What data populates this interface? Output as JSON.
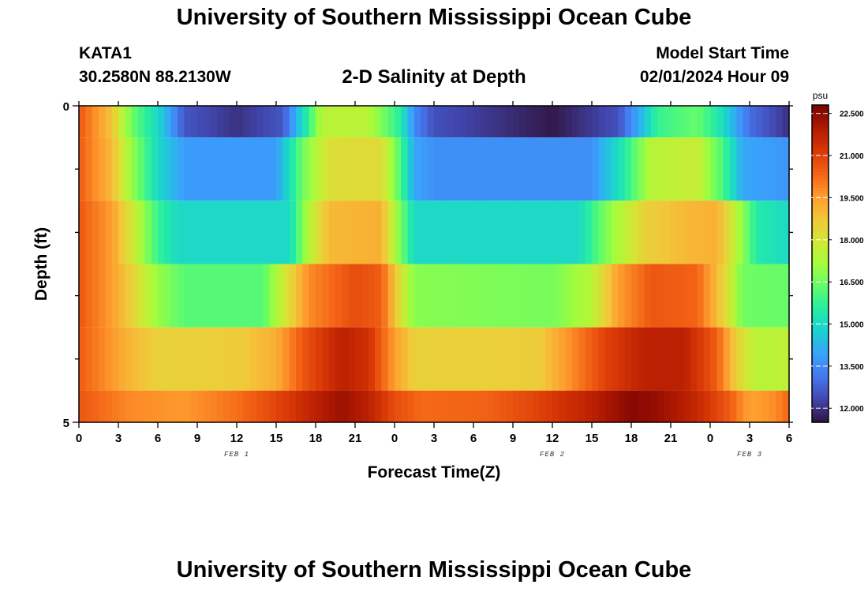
{
  "header": {
    "title": "University of Southern Mississippi Ocean Cube",
    "station_id": "KATA1",
    "coordinates": "30.2580N  88.2130W",
    "subtitle": "2-D Salinity at Depth",
    "model_start_label": "Model Start Time",
    "model_start_value": "02/01/2024 Hour 09",
    "bottom_title": "University of Southern Mississippi Ocean Cube"
  },
  "chart_data": {
    "type": "heatmap",
    "title": "2-D Salinity at Depth",
    "xlabel": "Forecast Time(Z)",
    "ylabel": "Depth (ft)",
    "x_tick_labels": [
      "0",
      "3",
      "6",
      "9",
      "12",
      "15",
      "18",
      "21",
      "0",
      "3",
      "6",
      "9",
      "12",
      "15",
      "18",
      "21",
      "0",
      "3",
      "6"
    ],
    "x_range_hours": [
      0,
      54
    ],
    "date_labels": [
      {
        "label": "FEB 1",
        "hour": 12
      },
      {
        "label": "FEB 2",
        "hour": 36
      },
      {
        "label": "FEB 3",
        "hour": 51
      }
    ],
    "y_tick_labels": [
      "0",
      "5"
    ],
    "ylim": [
      0,
      5
    ],
    "depth_bins_ft": [
      0,
      1,
      2,
      3,
      4,
      5
    ],
    "colorbar": {
      "units": "psu",
      "min": 11.5,
      "max": 22.8,
      "tick_labels": [
        "22.500",
        "21.000",
        "19.500",
        "18.000",
        "16.500",
        "15.000",
        "13.500",
        "12.000"
      ],
      "tick_values": [
        22.5,
        21.0,
        19.5,
        18.0,
        16.5,
        15.0,
        13.5,
        12.0
      ],
      "colormap": [
        "#30123b",
        "#4145ab",
        "#4675ed",
        "#39a2fc",
        "#1bcfd4",
        "#24eca6",
        "#61fc6c",
        "#a4fc3b",
        "#d1e834",
        "#f3c63a",
        "#fe9b2d",
        "#f36315",
        "#d93806",
        "#b11901",
        "#7a0403"
      ]
    },
    "rows": [
      {
        "depth_ft": 0,
        "keyframes": [
          [
            0,
            20.6
          ],
          [
            2.5,
            18.8
          ],
          [
            4,
            16.5
          ],
          [
            6,
            15.0
          ],
          [
            8,
            12.6
          ],
          [
            12,
            12.0
          ],
          [
            15.5,
            12.6
          ],
          [
            17,
            15.0
          ],
          [
            18.5,
            17.5
          ],
          [
            22,
            17.5
          ],
          [
            24.5,
            15.5
          ],
          [
            25.5,
            13.5
          ],
          [
            27,
            12.5
          ],
          [
            36,
            11.6
          ],
          [
            41,
            12.5
          ],
          [
            42.5,
            14.0
          ],
          [
            44,
            15.8
          ],
          [
            47,
            16.4
          ],
          [
            48.5,
            15.5
          ],
          [
            51,
            13.0
          ],
          [
            54,
            12.0
          ]
        ]
      },
      {
        "depth_ft": 1,
        "keyframes": [
          [
            0,
            20.5
          ],
          [
            2.5,
            19.0
          ],
          [
            4,
            17.0
          ],
          [
            6,
            15.0
          ],
          [
            8,
            13.8
          ],
          [
            15,
            13.8
          ],
          [
            17,
            16.5
          ],
          [
            19,
            18.2
          ],
          [
            23,
            18.3
          ],
          [
            24.5,
            16.0
          ],
          [
            25.5,
            14.0
          ],
          [
            27,
            13.6
          ],
          [
            39,
            13.6
          ],
          [
            41.5,
            15.5
          ],
          [
            43.5,
            17.5
          ],
          [
            47,
            17.8
          ],
          [
            49,
            16.0
          ],
          [
            50.5,
            14.0
          ],
          [
            54,
            13.7
          ]
        ]
      },
      {
        "depth_ft": 2,
        "keyframes": [
          [
            0,
            20.6
          ],
          [
            2.5,
            19.5
          ],
          [
            4,
            18.0
          ],
          [
            6,
            15.8
          ],
          [
            7.5,
            15.0
          ],
          [
            16,
            15.0
          ],
          [
            17.5,
            17.5
          ],
          [
            19,
            19.0
          ],
          [
            23,
            19.2
          ],
          [
            24.5,
            16.5
          ],
          [
            25.5,
            15.0
          ],
          [
            38,
            15.0
          ],
          [
            40.5,
            17.0
          ],
          [
            43,
            18.5
          ],
          [
            46,
            19.0
          ],
          [
            48.5,
            19.2
          ],
          [
            50,
            17.5
          ],
          [
            51.5,
            15.5
          ],
          [
            54,
            15.0
          ]
        ]
      },
      {
        "depth_ft": 3,
        "keyframes": [
          [
            0,
            20.6
          ],
          [
            2.5,
            19.5
          ],
          [
            4,
            18.5
          ],
          [
            6,
            17.0
          ],
          [
            8,
            16.2
          ],
          [
            14,
            16.2
          ],
          [
            15.5,
            17.8
          ],
          [
            17.5,
            19.8
          ],
          [
            21,
            20.8
          ],
          [
            23,
            20.5
          ],
          [
            24.5,
            18.0
          ],
          [
            25.5,
            16.8
          ],
          [
            36,
            16.6
          ],
          [
            39,
            17.5
          ],
          [
            41,
            19.5
          ],
          [
            43.5,
            20.6
          ],
          [
            47,
            20.4
          ],
          [
            49,
            18.5
          ],
          [
            50.5,
            16.5
          ],
          [
            54,
            16.4
          ]
        ]
      },
      {
        "depth_ft": 4,
        "keyframes": [
          [
            0,
            20.5
          ],
          [
            2,
            19.8
          ],
          [
            4,
            19.0
          ],
          [
            6,
            18.5
          ],
          [
            12,
            18.6
          ],
          [
            15,
            19.2
          ],
          [
            17,
            20.6
          ],
          [
            20,
            21.8
          ],
          [
            22,
            21.4
          ],
          [
            24,
            19.5
          ],
          [
            25.5,
            18.5
          ],
          [
            35,
            18.6
          ],
          [
            37.5,
            19.8
          ],
          [
            40,
            21.0
          ],
          [
            43,
            21.8
          ],
          [
            46,
            21.8
          ],
          [
            48.5,
            20.5
          ],
          [
            50,
            18.5
          ],
          [
            51.5,
            17.5
          ],
          [
            54,
            17.6
          ]
        ]
      },
      {
        "depth_ft": 5,
        "keyframes": [
          [
            0,
            20.6
          ],
          [
            2,
            20.2
          ],
          [
            4,
            19.8
          ],
          [
            8,
            19.6
          ],
          [
            12,
            20.2
          ],
          [
            16,
            21.2
          ],
          [
            18,
            21.8
          ],
          [
            20,
            22.3
          ],
          [
            22,
            21.8
          ],
          [
            24,
            20.8
          ],
          [
            26,
            20.3
          ],
          [
            31,
            20.4
          ],
          [
            35,
            21.0
          ],
          [
            39,
            21.8
          ],
          [
            42,
            22.6
          ],
          [
            44,
            22.4
          ],
          [
            47,
            21.6
          ],
          [
            49.5,
            20.5
          ],
          [
            51,
            19.4
          ],
          [
            53,
            19.8
          ],
          [
            54,
            20.4
          ]
        ]
      }
    ]
  }
}
